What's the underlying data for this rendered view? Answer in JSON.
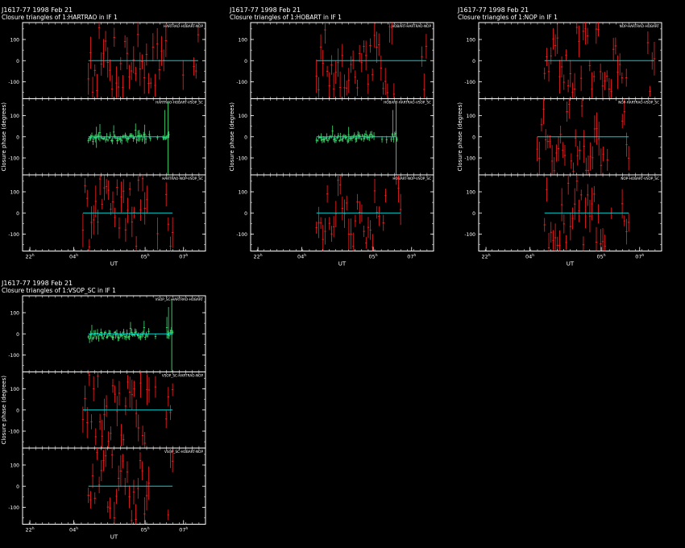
{
  "colors": {
    "background": "#000000",
    "frame": "#ffffff",
    "model": "#00d4d4",
    "data_red": "#ff2020",
    "data_green": "#40e070"
  },
  "axis_labels": {
    "x": "UT",
    "y": "Closure phase (degrees)"
  },
  "x_ticks": [
    "22^h",
    "04^h",
    "05^h",
    "07^h"
  ],
  "y_ticks": [
    "100",
    "0",
    "-100"
  ],
  "chart_data": [
    {
      "type": "scatter",
      "source": "J1617-77",
      "date": "1998 Feb 21",
      "subtitle": "Closure triangles of 1:HARTRAO in IF 1",
      "xlabel": "UT",
      "ylabel": "Closure phase (degrees)",
      "ylim": [
        -180,
        180
      ],
      "panels": [
        {
          "label": "HARTRAO-HOBART-NOP",
          "color": "red",
          "x_range_frac": [
            0.36,
            0.96
          ],
          "model": 0,
          "amplitude": 180
        },
        {
          "label": "HARTRAO-HOBART-VSOP_SC",
          "color": "green",
          "x_range_frac": [
            0.36,
            0.8
          ],
          "model": 0,
          "amplitude": 30
        },
        {
          "label": "HARTRAO-NOP-VSOP_SC",
          "color": "red",
          "x_range_frac": [
            0.33,
            0.82
          ],
          "model": 0,
          "amplitude": 180
        }
      ]
    },
    {
      "type": "scatter",
      "source": "J1617-77",
      "date": "1998 Feb 21",
      "subtitle": "Closure triangles of 1:HOBART in IF 1",
      "xlabel": "UT",
      "ylabel": "Closure phase (degrees)",
      "ylim": [
        -180,
        180
      ],
      "panels": [
        {
          "label": "HOBART-HARTRAO-NOP",
          "color": "red",
          "x_range_frac": [
            0.36,
            0.96
          ],
          "model": 0,
          "amplitude": 180
        },
        {
          "label": "HOBART-HARTRAO-VSOP_SC",
          "color": "green",
          "x_range_frac": [
            0.36,
            0.8
          ],
          "model": 0,
          "amplitude": 30
        },
        {
          "label": "HOBART-NOP-VSOP_SC",
          "color": "red",
          "x_range_frac": [
            0.36,
            0.82
          ],
          "model": 0,
          "amplitude": 180
        }
      ]
    },
    {
      "type": "scatter",
      "source": "J1617-77",
      "date": "1998 Feb 21",
      "subtitle": "Closure triangles of 1:NOP in IF 1",
      "xlabel": "UT",
      "ylabel": "Closure phase (degrees)",
      "ylim": [
        -180,
        180
      ],
      "panels": [
        {
          "label": "NOP-HARTRAO-HOBART",
          "color": "red",
          "x_range_frac": [
            0.36,
            0.96
          ],
          "model": 0,
          "amplitude": 180
        },
        {
          "label": "NOP-HARTRAO-VSOP_SC",
          "color": "red",
          "x_range_frac": [
            0.32,
            0.82
          ],
          "model": 0,
          "amplitude": 180
        },
        {
          "label": "NOP-HOBART-VSOP_SC",
          "color": "red",
          "x_range_frac": [
            0.36,
            0.82
          ],
          "model": 0,
          "amplitude": 180
        }
      ]
    },
    {
      "type": "scatter",
      "source": "J1617-77",
      "date": "1998 Feb 21",
      "subtitle": "Closure triangles of 1:VSOP_SC in IF 1",
      "xlabel": "UT",
      "ylabel": "Closure phase (degrees)",
      "ylim": [
        -180,
        180
      ],
      "panels": [
        {
          "label": "VSOP_SC-HARTRAO-HOBART",
          "color": "green",
          "x_range_frac": [
            0.36,
            0.82
          ],
          "model": 0,
          "amplitude": 30
        },
        {
          "label": "VSOP_SC-HARTRAO-NOP",
          "color": "red",
          "x_range_frac": [
            0.33,
            0.82
          ],
          "model": 0,
          "amplitude": 180
        },
        {
          "label": "VSOP_SC-HOBART-NOP",
          "color": "red",
          "x_range_frac": [
            0.36,
            0.82
          ],
          "model": 0,
          "amplitude": 180
        }
      ]
    }
  ]
}
